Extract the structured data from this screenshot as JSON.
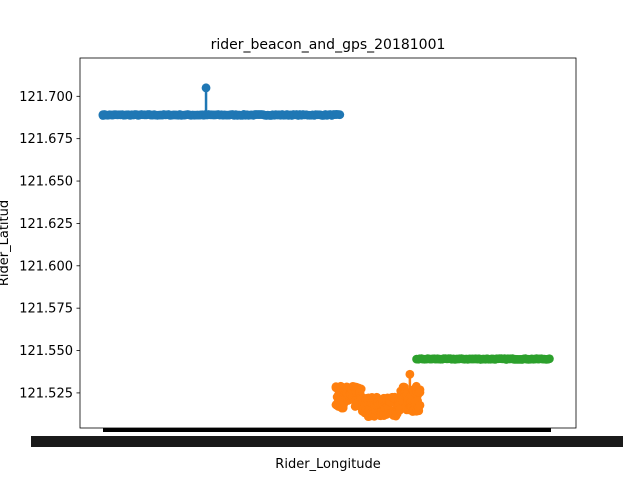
{
  "chart_data": {
    "type": "scatter",
    "title": "rider_beacon_and_gps_20181001",
    "xlabel": "Rider_Longitude",
    "ylabel": "Rider_Latitud",
    "ylim": [
      121.5043,
      121.7226
    ],
    "y_ticks": [
      121.525,
      121.55,
      121.575,
      121.6,
      121.625,
      121.65,
      121.675,
      121.7
    ],
    "y_tick_labels": [
      "121.525",
      "121.550",
      "121.575",
      "121.600",
      "121.625",
      "121.650",
      "121.675",
      "121.700"
    ],
    "x_axis_note": "categorical x axis with dense overlapping tick labels",
    "grid": false,
    "series": [
      {
        "color": "#1f77b4",
        "x_range": [
          0.0,
          0.53
        ],
        "y_base": 121.689,
        "y_spread": 0.0006,
        "outliers": [
          {
            "x": 0.23,
            "y": 121.705
          }
        ]
      },
      {
        "color": "#ff7f0e",
        "x_range": [
          0.52,
          0.71
        ],
        "y_min": 121.511,
        "y_max": 121.529,
        "outliers": [
          {
            "x": 0.685,
            "y": 121.536
          }
        ]
      },
      {
        "color": "#2ca02c",
        "x_range": [
          0.7,
          1.0
        ],
        "y_base": 121.545,
        "y_spread": 0.0005,
        "outliers": []
      }
    ]
  }
}
